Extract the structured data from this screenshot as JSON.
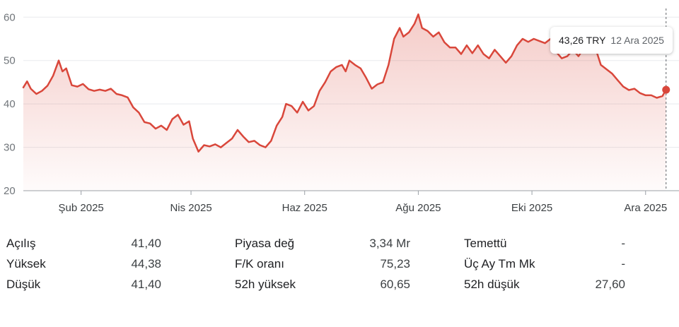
{
  "chart_data": {
    "type": "line",
    "currency": "TRY",
    "ylim": [
      20,
      62
    ],
    "yticks": [
      20,
      30,
      40,
      50,
      60
    ],
    "x_range": [
      "2025-01-01",
      "2025-12-14"
    ],
    "xticks": [
      {
        "date": "2025-02-01",
        "label": "Şub 2025"
      },
      {
        "date": "2025-04-01",
        "label": "Nis 2025"
      },
      {
        "date": "2025-06-01",
        "label": "Haz 2025"
      },
      {
        "date": "2025-08-01",
        "label": "Ağu 2025"
      },
      {
        "date": "2025-10-01",
        "label": "Eki 2025"
      },
      {
        "date": "2025-12-01",
        "label": "Ara 2025"
      }
    ],
    "line_color": "#d9473b",
    "series": [
      {
        "points": [
          [
            "2025-01-01",
            43.8
          ],
          [
            "2025-01-03",
            45.2
          ],
          [
            "2025-01-05",
            43.5
          ],
          [
            "2025-01-08",
            42.3
          ],
          [
            "2025-01-11",
            43.0
          ],
          [
            "2025-01-14",
            44.2
          ],
          [
            "2025-01-17",
            46.5
          ],
          [
            "2025-01-20",
            50.0
          ],
          [
            "2025-01-22",
            47.5
          ],
          [
            "2025-01-24",
            48.2
          ],
          [
            "2025-01-27",
            44.3
          ],
          [
            "2025-01-30",
            44.0
          ],
          [
            "2025-02-02",
            44.6
          ],
          [
            "2025-02-05",
            43.4
          ],
          [
            "2025-02-08",
            43.0
          ],
          [
            "2025-02-11",
            43.3
          ],
          [
            "2025-02-14",
            43.0
          ],
          [
            "2025-02-17",
            43.5
          ],
          [
            "2025-02-20",
            42.3
          ],
          [
            "2025-02-23",
            42.0
          ],
          [
            "2025-02-26",
            41.5
          ],
          [
            "2025-03-01",
            39.2
          ],
          [
            "2025-03-04",
            38.0
          ],
          [
            "2025-03-07",
            35.8
          ],
          [
            "2025-03-10",
            35.5
          ],
          [
            "2025-03-13",
            34.3
          ],
          [
            "2025-03-16",
            35.0
          ],
          [
            "2025-03-19",
            34.0
          ],
          [
            "2025-03-22",
            36.5
          ],
          [
            "2025-03-25",
            37.5
          ],
          [
            "2025-03-28",
            35.2
          ],
          [
            "2025-03-31",
            36.0
          ],
          [
            "2025-04-02",
            32.0
          ],
          [
            "2025-04-05",
            29.0
          ],
          [
            "2025-04-08",
            30.5
          ],
          [
            "2025-04-11",
            30.2
          ],
          [
            "2025-04-14",
            30.7
          ],
          [
            "2025-04-17",
            30.0
          ],
          [
            "2025-04-20",
            31.0
          ],
          [
            "2025-04-23",
            32.0
          ],
          [
            "2025-04-26",
            34.0
          ],
          [
            "2025-04-29",
            32.5
          ],
          [
            "2025-05-02",
            31.2
          ],
          [
            "2025-05-05",
            31.5
          ],
          [
            "2025-05-08",
            30.5
          ],
          [
            "2025-05-11",
            30.0
          ],
          [
            "2025-05-14",
            31.5
          ],
          [
            "2025-05-17",
            35.0
          ],
          [
            "2025-05-20",
            37.0
          ],
          [
            "2025-05-22",
            40.0
          ],
          [
            "2025-05-25",
            39.5
          ],
          [
            "2025-05-28",
            38.0
          ],
          [
            "2025-05-31",
            40.5
          ],
          [
            "2025-06-03",
            38.5
          ],
          [
            "2025-06-06",
            39.5
          ],
          [
            "2025-06-09",
            43.0
          ],
          [
            "2025-06-12",
            45.0
          ],
          [
            "2025-06-15",
            47.5
          ],
          [
            "2025-06-18",
            48.5
          ],
          [
            "2025-06-21",
            49.0
          ],
          [
            "2025-06-23",
            47.5
          ],
          [
            "2025-06-25",
            50.0
          ],
          [
            "2025-06-28",
            49.0
          ],
          [
            "2025-07-01",
            48.2
          ],
          [
            "2025-07-04",
            46.0
          ],
          [
            "2025-07-07",
            43.5
          ],
          [
            "2025-07-10",
            44.5
          ],
          [
            "2025-07-13",
            45.0
          ],
          [
            "2025-07-16",
            49.0
          ],
          [
            "2025-07-19",
            55.0
          ],
          [
            "2025-07-22",
            57.5
          ],
          [
            "2025-07-24",
            55.5
          ],
          [
            "2025-07-27",
            56.5
          ],
          [
            "2025-07-30",
            58.5
          ],
          [
            "2025-08-01",
            60.65
          ],
          [
            "2025-08-03",
            57.5
          ],
          [
            "2025-08-06",
            56.8
          ],
          [
            "2025-08-09",
            55.5
          ],
          [
            "2025-08-12",
            56.5
          ],
          [
            "2025-08-15",
            54.2
          ],
          [
            "2025-08-18",
            53.0
          ],
          [
            "2025-08-21",
            53.0
          ],
          [
            "2025-08-24",
            51.5
          ],
          [
            "2025-08-27",
            53.5
          ],
          [
            "2025-08-30",
            51.7
          ],
          [
            "2025-09-02",
            53.5
          ],
          [
            "2025-09-05",
            51.5
          ],
          [
            "2025-09-08",
            50.5
          ],
          [
            "2025-09-11",
            52.5
          ],
          [
            "2025-09-14",
            51.0
          ],
          [
            "2025-09-17",
            49.5
          ],
          [
            "2025-09-20",
            51.0
          ],
          [
            "2025-09-23",
            53.5
          ],
          [
            "2025-09-26",
            55.0
          ],
          [
            "2025-09-29",
            54.3
          ],
          [
            "2025-10-02",
            55.0
          ],
          [
            "2025-10-05",
            54.5
          ],
          [
            "2025-10-08",
            54.0
          ],
          [
            "2025-10-11",
            55.0
          ],
          [
            "2025-10-14",
            52.0
          ],
          [
            "2025-10-17",
            50.5
          ],
          [
            "2025-10-20",
            51.0
          ],
          [
            "2025-10-23",
            52.5
          ],
          [
            "2025-10-26",
            51.0
          ],
          [
            "2025-10-29",
            53.0
          ],
          [
            "2025-11-01",
            52.5
          ],
          [
            "2025-11-04",
            53.0
          ],
          [
            "2025-11-07",
            49.0
          ],
          [
            "2025-11-10",
            48.0
          ],
          [
            "2025-11-13",
            47.0
          ],
          [
            "2025-11-16",
            45.5
          ],
          [
            "2025-11-19",
            44.0
          ],
          [
            "2025-11-22",
            43.2
          ],
          [
            "2025-11-25",
            43.5
          ],
          [
            "2025-11-28",
            42.5
          ],
          [
            "2025-12-01",
            42.0
          ],
          [
            "2025-12-04",
            42.0
          ],
          [
            "2025-12-07",
            41.4
          ],
          [
            "2025-12-10",
            41.8
          ],
          [
            "2025-12-12",
            43.26
          ]
        ]
      }
    ],
    "tooltip": {
      "price": "43,26 TRY",
      "date": "12 Ara 2025"
    }
  },
  "stats": {
    "col1": [
      {
        "label": "Açılış",
        "value": "41,40"
      },
      {
        "label": "Yüksek",
        "value": "44,38"
      },
      {
        "label": "Düşük",
        "value": "41,40"
      }
    ],
    "col2": [
      {
        "label": "Piyasa değ",
        "value": "3,34 Mr"
      },
      {
        "label": "F/K oranı",
        "value": "75,23"
      },
      {
        "label": "52h yüksek",
        "value": "60,65"
      }
    ],
    "col3": [
      {
        "label": "Temettü",
        "value": "-"
      },
      {
        "label": "Üç Ay Tm Mk",
        "value": "-"
      },
      {
        "label": "52h düşük",
        "value": "27,60"
      }
    ]
  }
}
